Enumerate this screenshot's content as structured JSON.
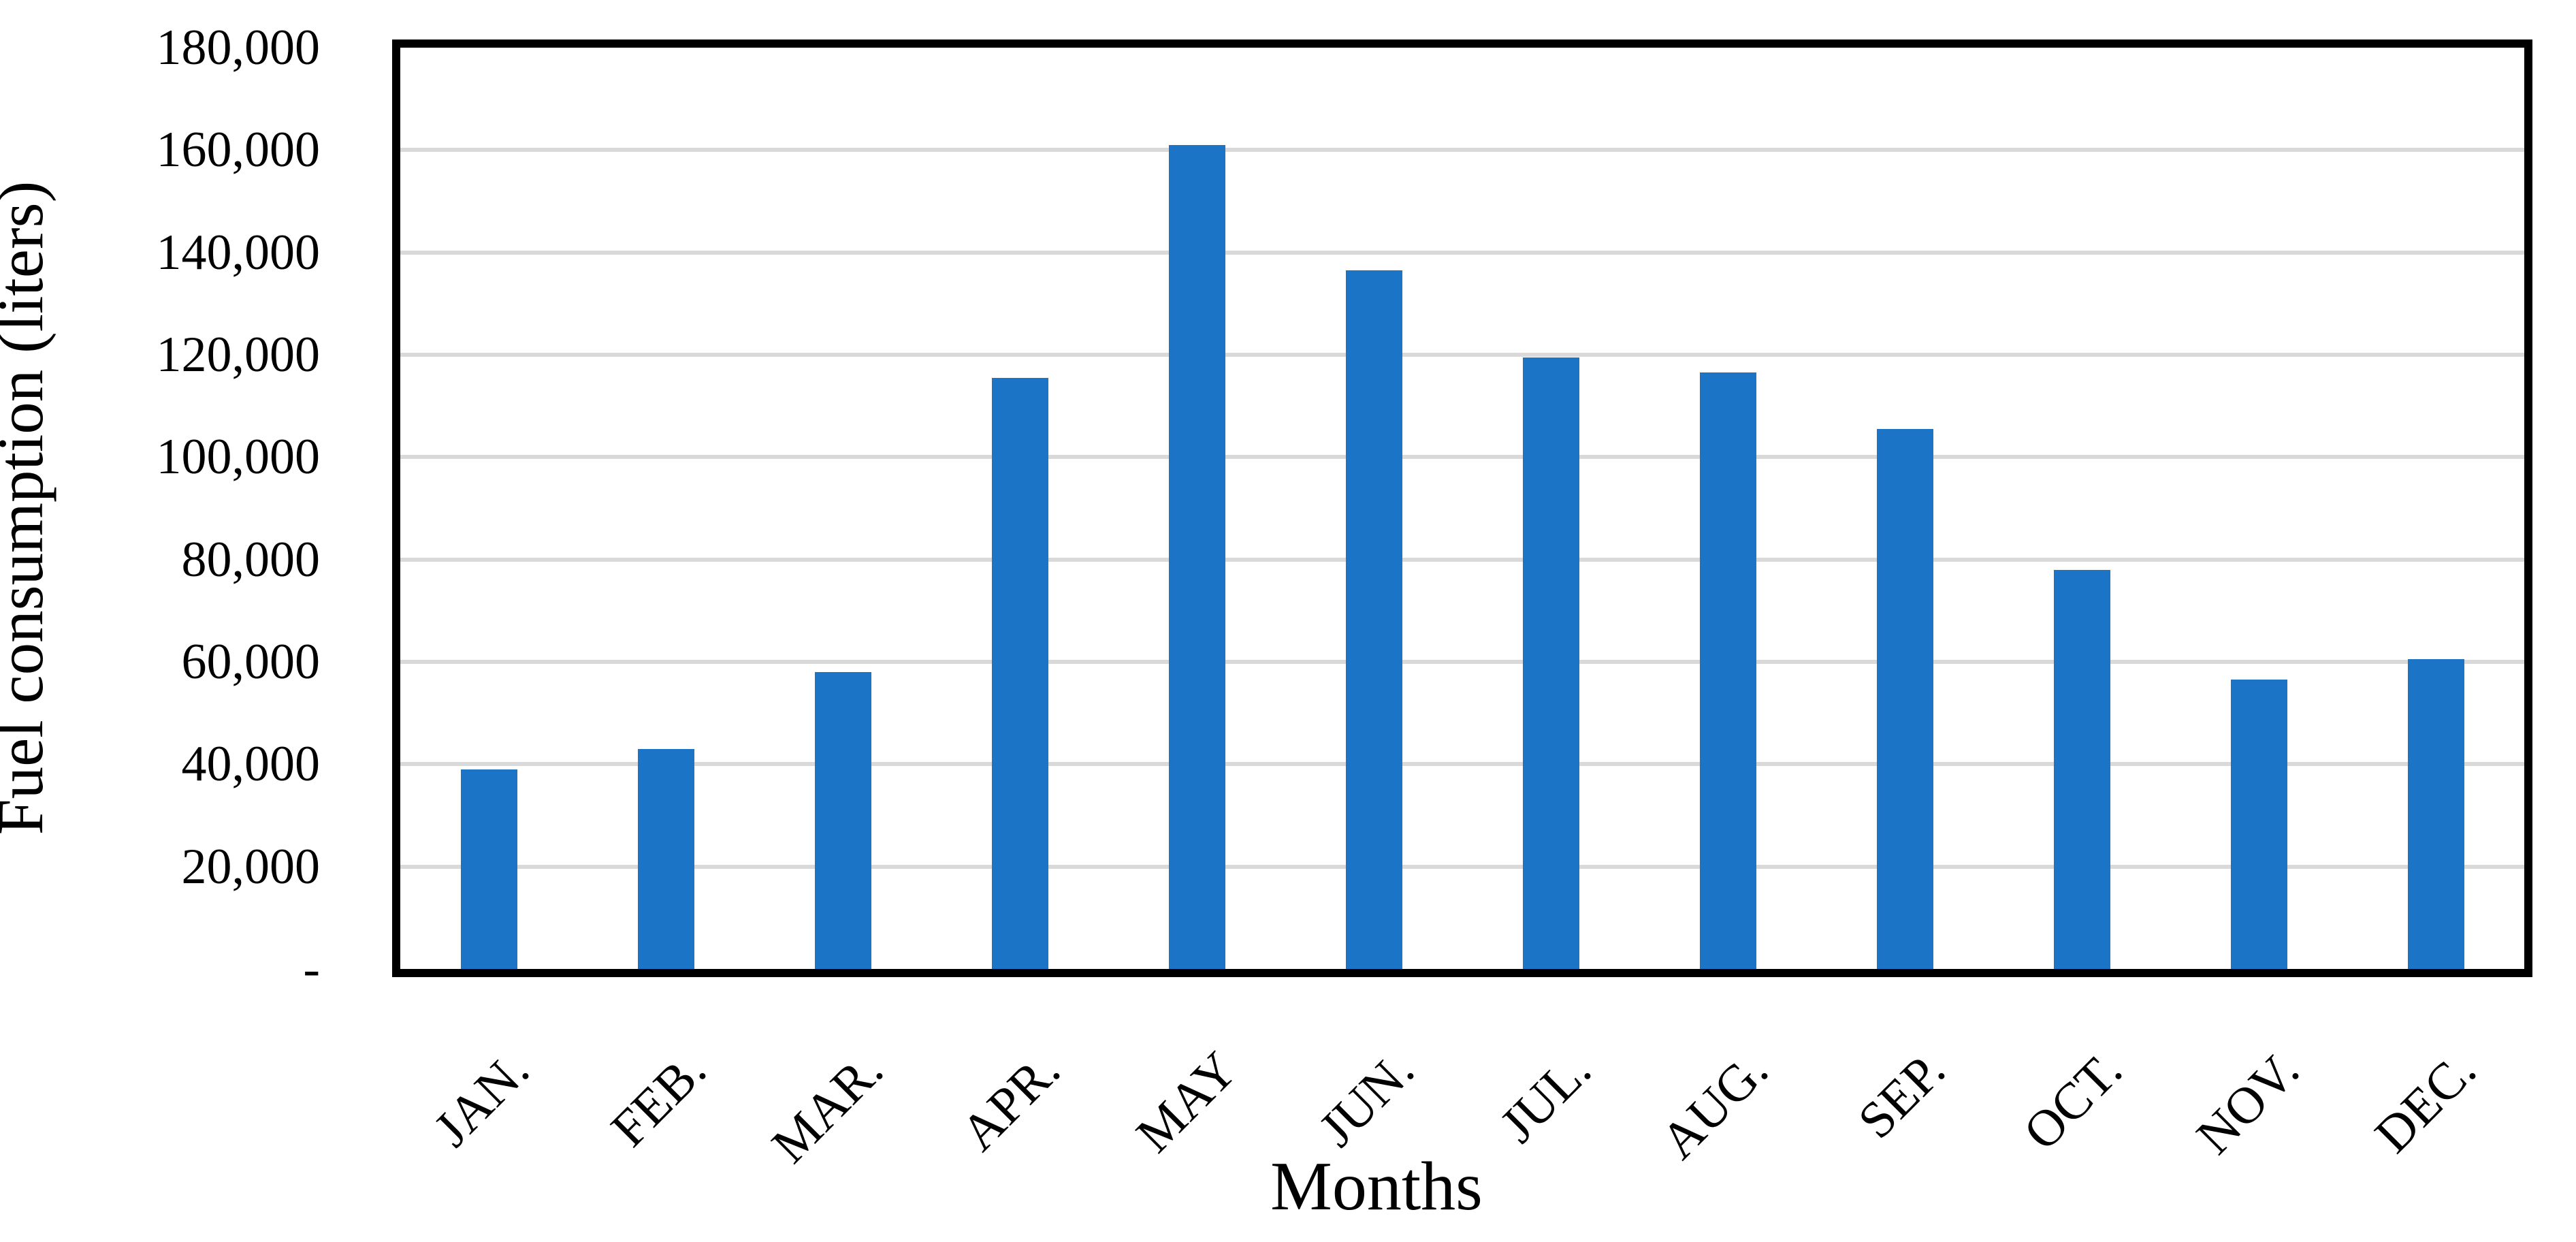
{
  "figure": {
    "background_color": "#ffffff",
    "colors": {
      "bar": "#1b74c5",
      "gridline": "#d9d9d9",
      "axis_border": "#000000",
      "text": "#000000"
    },
    "y_axis": {
      "title": "Fuel consumption (liters)",
      "tick_labels": [
        "180,000",
        "160,000",
        "140,000",
        "120,000",
        "100,000",
        "80,000",
        "60,000",
        "40,000",
        "20,000",
        "-"
      ]
    },
    "x_axis": {
      "title": "Months"
    }
  },
  "chart_data": {
    "type": "bar",
    "title": "",
    "xlabel": "Months",
    "ylabel": "Fuel consumption (liters)",
    "categories": [
      "JAN.",
      "FEB.",
      "MAR.",
      "APR.",
      "MAY",
      "JUN.",
      "JUL.",
      "AUG.",
      "SEP.",
      "OCT.",
      "NOV.",
      "DEC."
    ],
    "values": [
      39000,
      43000,
      58000,
      115500,
      161000,
      136500,
      119500,
      116500,
      105500,
      78000,
      56500,
      60500
    ],
    "ylim": [
      0,
      180000
    ],
    "y_major_unit": 20000,
    "zero_tick_label": "-",
    "grid": true,
    "legend": false,
    "bar_color": "#1b74c5",
    "series_name": "Fuel consumption"
  }
}
